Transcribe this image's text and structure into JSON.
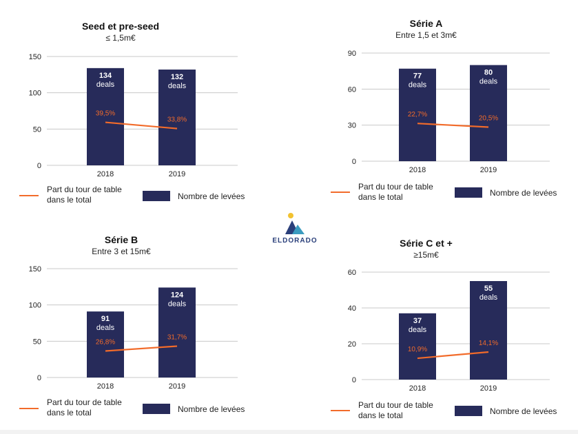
{
  "brand": {
    "logo_text": "ELDORADO",
    "logo_icon": "mountain-sun-icon",
    "colors": {
      "navy": "#2a3f7a",
      "teal": "#3a9bbf",
      "gold": "#f2c230"
    }
  },
  "legend": {
    "line_label_1": "Part du tour de table",
    "line_label_2": "dans le total",
    "bar_label": "Nombre de levées"
  },
  "colors": {
    "bar": "#272b5a",
    "line": "#f26b2a",
    "grid": "#c8c8c8"
  },
  "chart_data": [
    {
      "type": "bar",
      "title": "Seed et pre-seed",
      "subtitle": "≤ 1,5m€",
      "categories": [
        "2018",
        "2019"
      ],
      "ylim": [
        0,
        150
      ],
      "yticks": [
        0,
        50,
        100,
        150
      ],
      "series": [
        {
          "name": "Nombre de levées",
          "type": "bar",
          "values": [
            134,
            132
          ],
          "labels": [
            "134",
            "132"
          ],
          "sublabel": "deals"
        },
        {
          "name": "Part du tour de table dans le total",
          "type": "line",
          "values": [
            39.5,
            33.8
          ],
          "labels": [
            "39,5%",
            "33,8%"
          ]
        }
      ],
      "legend": "bottom"
    },
    {
      "type": "bar",
      "title": "Série A",
      "subtitle": "Entre 1,5 et 3m€",
      "categories": [
        "2018",
        "2019"
      ],
      "ylim": [
        0,
        90
      ],
      "yticks": [
        0,
        30,
        60,
        90
      ],
      "series": [
        {
          "name": "Nombre de levées",
          "type": "bar",
          "values": [
            77,
            80
          ],
          "labels": [
            "77",
            "80"
          ],
          "sublabel": "deals"
        },
        {
          "name": "Part du tour de table dans le total",
          "type": "line",
          "values": [
            22.7,
            20.5
          ],
          "labels": [
            "22,7%",
            "20,5%"
          ]
        }
      ],
      "legend": "bottom"
    },
    {
      "type": "bar",
      "title": "Série B",
      "subtitle": "Entre 3 et 15m€",
      "categories": [
        "2018",
        "2019"
      ],
      "ylim": [
        0,
        150
      ],
      "yticks": [
        0,
        50,
        100,
        150
      ],
      "series": [
        {
          "name": "Nombre de levées",
          "type": "bar",
          "values": [
            91,
            124
          ],
          "labels": [
            "91",
            "124"
          ],
          "sublabel": "deals"
        },
        {
          "name": "Part du tour de table dans le total",
          "type": "line",
          "values": [
            26.8,
            31.7
          ],
          "labels": [
            "26,8%",
            "31,7%"
          ]
        }
      ],
      "legend": "bottom"
    },
    {
      "type": "bar",
      "title": "Série C et +",
      "subtitle": "≥15m€",
      "categories": [
        "2018",
        "2019"
      ],
      "ylim": [
        0,
        60
      ],
      "yticks": [
        0,
        20,
        40,
        60
      ],
      "series": [
        {
          "name": "Nombre de levées",
          "type": "bar",
          "values": [
            37,
            55
          ],
          "labels": [
            "37",
            "55"
          ],
          "sublabel": "deals"
        },
        {
          "name": "Part du tour de table dans le total",
          "type": "line",
          "values": [
            10.9,
            14.1
          ],
          "labels": [
            "10,9%",
            "14,1%"
          ]
        }
      ],
      "legend": "bottom"
    }
  ]
}
